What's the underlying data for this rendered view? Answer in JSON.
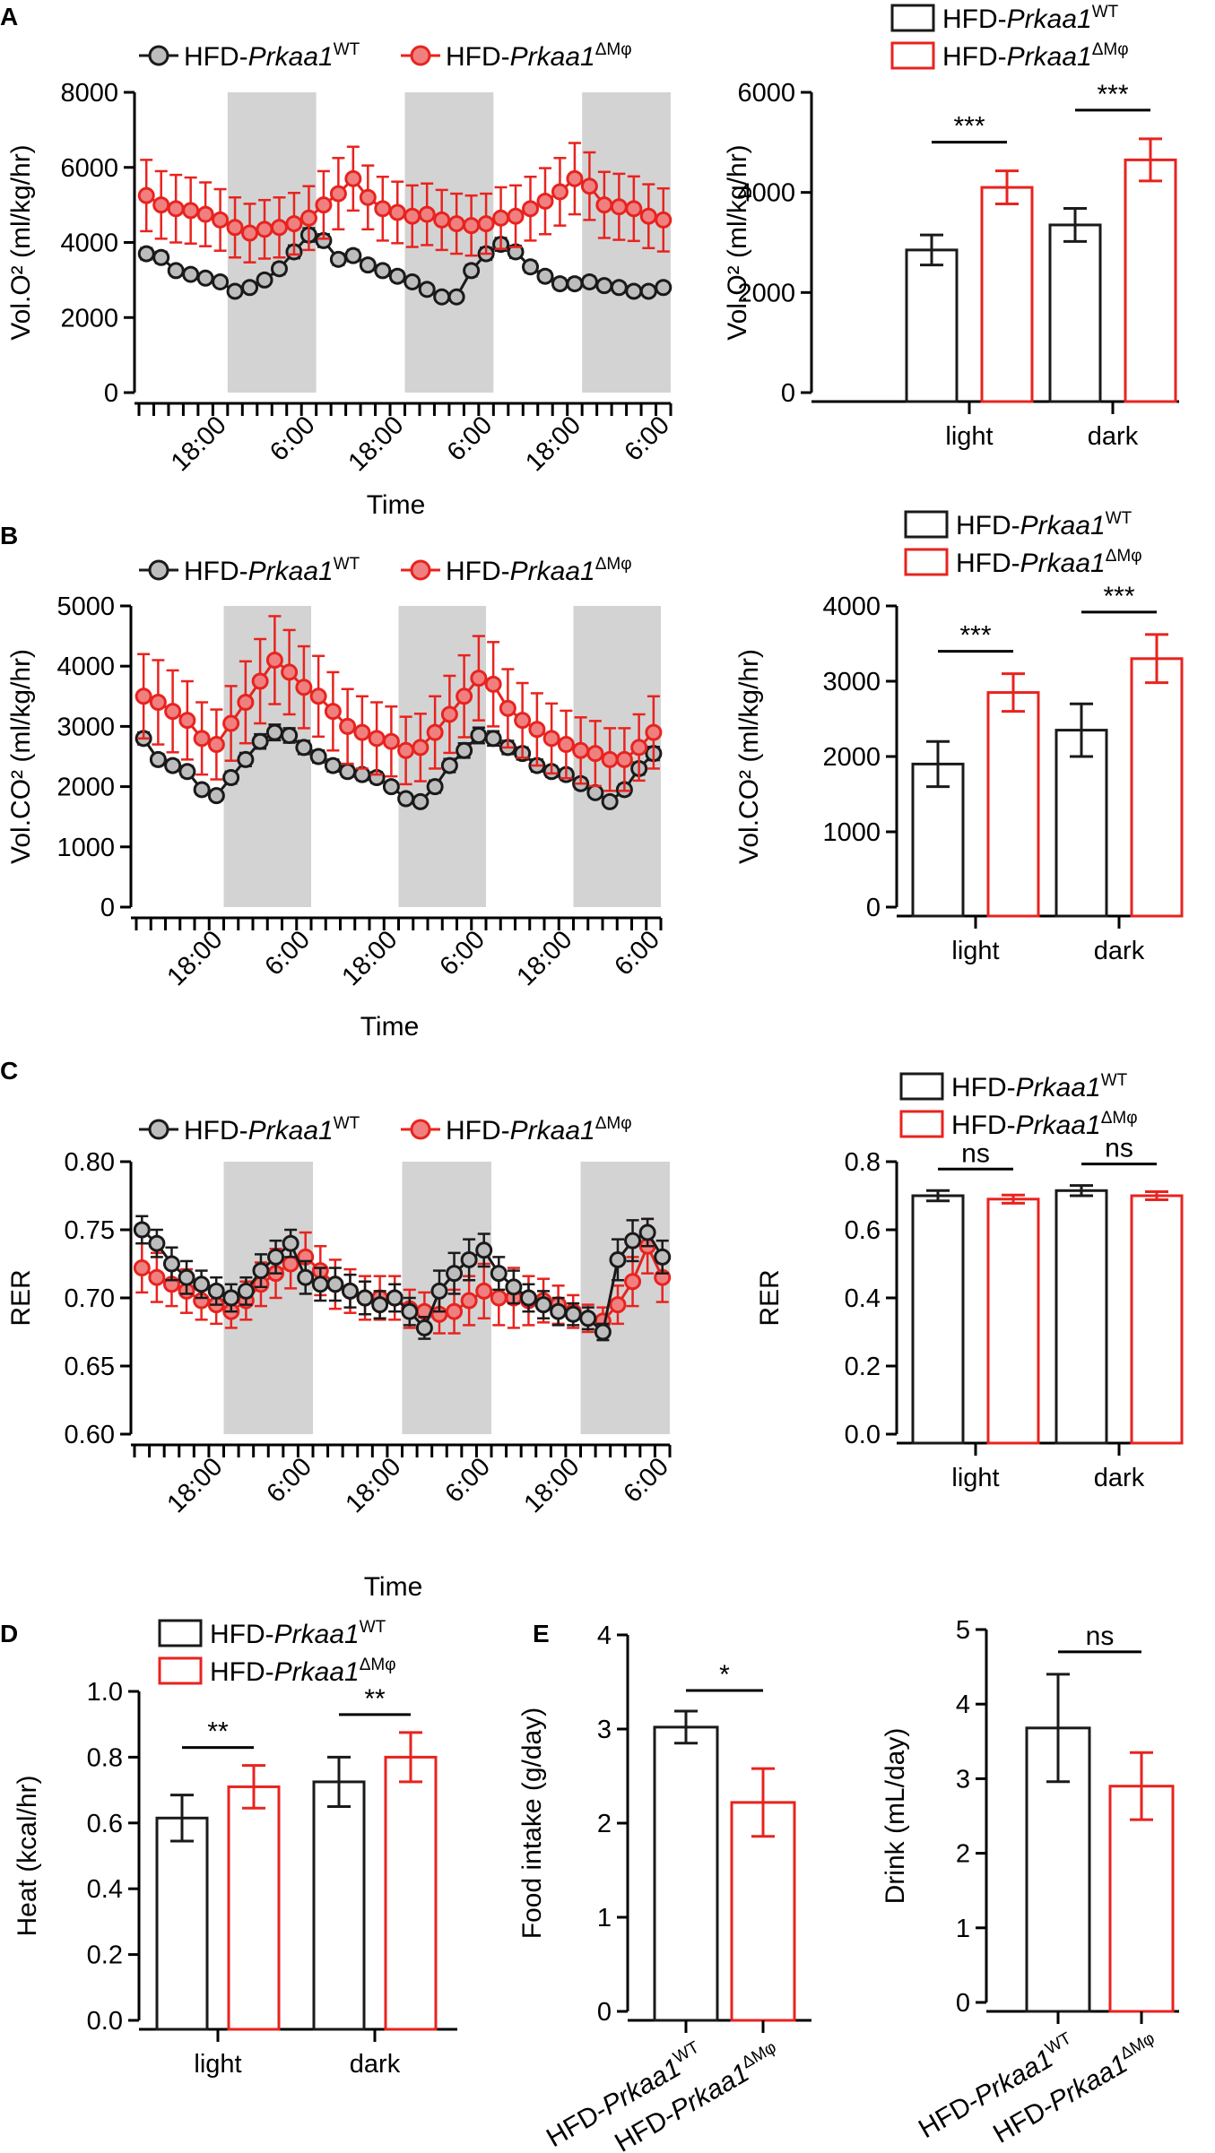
{
  "colors": {
    "wt": "#1a1a1a",
    "ko": "#e8231f",
    "night": "#d3d3d3",
    "marker_fill_wt": "#bdbdbd",
    "marker_fill_ko": "#f08080"
  },
  "legend": {
    "prefix": "HFD-",
    "gene": "Prkaa1",
    "wt_sup": "WT",
    "ko_sup": "ΔMφ"
  },
  "chart_data": [
    {
      "id": "A_time",
      "panel_label": "A",
      "type": "line",
      "ylabel": "Vol.O² (ml/kg/hr)",
      "xlabel": "Time",
      "ylim": [
        0,
        8000
      ],
      "yticks": [
        0,
        2000,
        4000,
        6000,
        8000
      ],
      "y_tick_labels": [
        "0",
        "2000",
        "4000",
        "6000",
        "8000"
      ],
      "x_tick_labels": [
        "18:00",
        "6:00",
        "18:00",
        "6:00",
        "18:00",
        "6:00"
      ],
      "x_count": 36,
      "night_bands": [
        [
          6,
          12
        ],
        [
          18,
          24
        ],
        [
          30,
          36
        ]
      ],
      "series": [
        {
          "name": "HFD-Prkaa1 WT",
          "key": "wt",
          "values": [
            3700,
            3600,
            3250,
            3150,
            3050,
            2950,
            2700,
            2800,
            3000,
            3300,
            3750,
            4200,
            4050,
            3550,
            3650,
            3400,
            3250,
            3100,
            2950,
            2750,
            2550,
            2550,
            3250,
            3700,
            3950,
            3750,
            3350,
            3100,
            2900,
            2900,
            2950,
            2850,
            2800,
            2700,
            2700,
            2800
          ],
          "errors": [
            150,
            150,
            130,
            130,
            120,
            120,
            120,
            120,
            120,
            150,
            170,
            180,
            170,
            150,
            150,
            140,
            140,
            140,
            130,
            130,
            120,
            120,
            150,
            160,
            170,
            160,
            150,
            140,
            140,
            140,
            140,
            130,
            130,
            130,
            120,
            120
          ]
        },
        {
          "name": "HFD-Prkaa1 ΔMφ",
          "key": "ko",
          "values": [
            5250,
            5000,
            4900,
            4850,
            4750,
            4600,
            4400,
            4250,
            4350,
            4400,
            4500,
            4650,
            5000,
            5300,
            5700,
            5200,
            4900,
            4800,
            4700,
            4750,
            4600,
            4500,
            4450,
            4500,
            4650,
            4700,
            4900,
            5100,
            5350,
            5700,
            5500,
            5000,
            4950,
            4900,
            4700,
            4600
          ],
          "errors": [
            950,
            900,
            900,
            880,
            850,
            820,
            800,
            780,
            780,
            800,
            820,
            850,
            900,
            950,
            850,
            850,
            850,
            820,
            820,
            820,
            800,
            800,
            800,
            800,
            820,
            820,
            850,
            880,
            900,
            950,
            900,
            880,
            880,
            860,
            850,
            840
          ]
        }
      ]
    },
    {
      "id": "A_bar",
      "type": "bar",
      "ylabel": "Vol.O² (ml/kg/hr)",
      "categories": [
        "light",
        "dark"
      ],
      "ylim": [
        0,
        6000
      ],
      "yticks": [
        0,
        2000,
        4000,
        6000
      ],
      "y_tick_labels": [
        "0",
        "2000",
        "4000",
        "6000"
      ],
      "series": [
        {
          "name": "HFD-Prkaa1 WT",
          "key": "wt",
          "values": [
            2850,
            3350
          ],
          "errors": [
            300,
            330
          ]
        },
        {
          "name": "HFD-Prkaa1 ΔMφ",
          "key": "ko",
          "values": [
            4100,
            4650
          ],
          "errors": [
            330,
            420
          ]
        }
      ],
      "significance": [
        "***",
        "***"
      ]
    },
    {
      "id": "B_time",
      "panel_label": "B",
      "type": "line",
      "ylabel": "Vol.CO² (ml/kg/hr)",
      "xlabel": "Time",
      "ylim": [
        0,
        5000
      ],
      "yticks": [
        0,
        1000,
        2000,
        3000,
        4000,
        5000
      ],
      "y_tick_labels": [
        "0",
        "1000",
        "2000",
        "3000",
        "4000",
        "5000"
      ],
      "x_tick_labels": [
        "18:00",
        "6:00",
        "18:00",
        "6:00",
        "18:00",
        "6:00"
      ],
      "x_count": 36,
      "night_bands": [
        [
          6,
          12
        ],
        [
          18,
          24
        ],
        [
          30,
          36
        ]
      ],
      "series": [
        {
          "name": "HFD-Prkaa1 WT",
          "key": "wt",
          "values": [
            2800,
            2450,
            2350,
            2250,
            1950,
            1850,
            2150,
            2450,
            2750,
            2900,
            2850,
            2650,
            2500,
            2350,
            2250,
            2200,
            2150,
            2000,
            1800,
            1750,
            2000,
            2350,
            2600,
            2850,
            2800,
            2650,
            2550,
            2350,
            2250,
            2200,
            2050,
            1900,
            1750,
            1950,
            2300,
            2550
          ],
          "errors": [
            100,
            90,
            90,
            90,
            80,
            80,
            100,
            110,
            120,
            130,
            120,
            110,
            100,
            100,
            90,
            90,
            90,
            80,
            80,
            80,
            100,
            110,
            120,
            130,
            120,
            110,
            100,
            100,
            90,
            90,
            90,
            80,
            80,
            90,
            100,
            110
          ]
        },
        {
          "name": "HFD-Prkaa1 ΔMφ",
          "key": "ko",
          "values": [
            3500,
            3400,
            3250,
            3100,
            2800,
            2700,
            3050,
            3400,
            3750,
            4100,
            3900,
            3650,
            3500,
            3250,
            3000,
            2900,
            2800,
            2750,
            2600,
            2650,
            2900,
            3200,
            3500,
            3800,
            3700,
            3300,
            3100,
            2950,
            2800,
            2700,
            2600,
            2550,
            2450,
            2450,
            2650,
            2900
          ],
          "errors": [
            700,
            700,
            680,
            650,
            600,
            580,
            620,
            680,
            700,
            730,
            700,
            680,
            670,
            650,
            620,
            600,
            600,
            580,
            560,
            560,
            600,
            640,
            680,
            700,
            700,
            650,
            620,
            600,
            580,
            560,
            550,
            540,
            520,
            520,
            550,
            600
          ]
        }
      ]
    },
    {
      "id": "B_bar",
      "type": "bar",
      "ylabel": "Vol.CO² (ml/kg/hr)",
      "categories": [
        "light",
        "dark"
      ],
      "ylim": [
        0,
        4000
      ],
      "yticks": [
        0,
        1000,
        2000,
        3000,
        4000
      ],
      "y_tick_labels": [
        "0",
        "1000",
        "2000",
        "3000",
        "4000"
      ],
      "series": [
        {
          "name": "HFD-Prkaa1 WT",
          "key": "wt",
          "values": [
            1900,
            2350
          ],
          "errors": [
            300,
            350
          ]
        },
        {
          "name": "HFD-Prkaa1 ΔMφ",
          "key": "ko",
          "values": [
            2850,
            3300
          ],
          "errors": [
            250,
            320
          ]
        }
      ],
      "significance": [
        "***",
        "***"
      ]
    },
    {
      "id": "C_time",
      "panel_label": "C",
      "type": "line",
      "ylabel": "RER",
      "xlabel": "Time",
      "ylim": [
        0.6,
        0.8
      ],
      "yticks": [
        0.6,
        0.65,
        0.7,
        0.75,
        0.8
      ],
      "y_tick_labels": [
        "0.60",
        "0.65",
        "0.70",
        "0.75",
        "0.80"
      ],
      "x_tick_labels": [
        "18:00",
        "6:00",
        "18:00",
        "6:00",
        "18:00",
        "6:00"
      ],
      "x_count": 36,
      "night_bands": [
        [
          6,
          12
        ],
        [
          18,
          24
        ],
        [
          30,
          36
        ]
      ],
      "series": [
        {
          "name": "HFD-Prkaa1 WT",
          "key": "wt",
          "values": [
            0.75,
            0.74,
            0.725,
            0.715,
            0.71,
            0.705,
            0.7,
            0.705,
            0.72,
            0.73,
            0.74,
            0.715,
            0.71,
            0.71,
            0.705,
            0.7,
            0.695,
            0.7,
            0.69,
            0.678,
            0.705,
            0.718,
            0.728,
            0.735,
            0.718,
            0.708,
            0.7,
            0.695,
            0.69,
            0.688,
            0.685,
            0.675,
            0.728,
            0.742,
            0.748,
            0.73
          ],
          "errors": [
            0.01,
            0.01,
            0.012,
            0.012,
            0.01,
            0.01,
            0.01,
            0.01,
            0.012,
            0.012,
            0.01,
            0.012,
            0.012,
            0.012,
            0.012,
            0.012,
            0.01,
            0.01,
            0.01,
            0.008,
            0.015,
            0.015,
            0.015,
            0.012,
            0.012,
            0.012,
            0.01,
            0.01,
            0.01,
            0.008,
            0.008,
            0.006,
            0.015,
            0.015,
            0.01,
            0.012
          ]
        },
        {
          "name": "HFD-Prkaa1 ΔMφ",
          "key": "ko",
          "values": [
            0.722,
            0.715,
            0.71,
            0.705,
            0.698,
            0.695,
            0.69,
            0.698,
            0.71,
            0.718,
            0.725,
            0.73,
            0.72,
            0.71,
            0.705,
            0.7,
            0.7,
            0.7,
            0.692,
            0.69,
            0.688,
            0.69,
            0.698,
            0.705,
            0.7,
            0.7,
            0.698,
            0.698,
            0.695,
            0.69,
            0.685,
            0.683,
            0.695,
            0.712,
            0.738,
            0.715
          ],
          "errors": [
            0.018,
            0.018,
            0.016,
            0.016,
            0.014,
            0.014,
            0.012,
            0.014,
            0.016,
            0.018,
            0.018,
            0.018,
            0.018,
            0.018,
            0.016,
            0.016,
            0.016,
            0.016,
            0.014,
            0.014,
            0.014,
            0.016,
            0.018,
            0.02,
            0.02,
            0.022,
            0.018,
            0.016,
            0.014,
            0.012,
            0.01,
            0.01,
            0.014,
            0.018,
            0.02,
            0.018
          ]
        }
      ]
    },
    {
      "id": "C_bar",
      "type": "bar",
      "ylabel": "RER",
      "categories": [
        "light",
        "dark"
      ],
      "ylim": [
        0,
        0.8
      ],
      "yticks": [
        0,
        0.2,
        0.4,
        0.6,
        0.8
      ],
      "y_tick_labels": [
        "0.0",
        "0.2",
        "0.4",
        "0.6",
        "0.8"
      ],
      "series": [
        {
          "name": "HFD-Prkaa1 WT",
          "key": "wt",
          "values": [
            0.7,
            0.715
          ],
          "errors": [
            0.015,
            0.015
          ]
        },
        {
          "name": "HFD-Prkaa1 ΔMφ",
          "key": "ko",
          "values": [
            0.69,
            0.7
          ],
          "errors": [
            0.012,
            0.012
          ]
        }
      ],
      "significance": [
        "ns",
        "ns"
      ]
    },
    {
      "id": "D_bar",
      "panel_label": "D",
      "type": "bar",
      "ylabel": "Heat (kcal/hr)",
      "categories": [
        "light",
        "dark"
      ],
      "ylim": [
        0,
        1.0
      ],
      "yticks": [
        0,
        0.2,
        0.4,
        0.6,
        0.8,
        1.0
      ],
      "y_tick_labels": [
        "0.0",
        "0.2",
        "0.4",
        "0.6",
        "0.8",
        "1.0"
      ],
      "series": [
        {
          "name": "HFD-Prkaa1 WT",
          "key": "wt",
          "values": [
            0.615,
            0.725
          ],
          "errors": [
            0.07,
            0.075
          ]
        },
        {
          "name": "HFD-Prkaa1 ΔMφ",
          "key": "ko",
          "values": [
            0.71,
            0.8
          ],
          "errors": [
            0.065,
            0.075
          ]
        }
      ],
      "significance": [
        "**",
        "**"
      ]
    },
    {
      "id": "E_food",
      "panel_label": "E",
      "type": "bar",
      "ylabel": "Food intake (g/day)",
      "ylim": [
        0,
        4
      ],
      "yticks": [
        0,
        1,
        2,
        3,
        4
      ],
      "y_tick_labels": [
        "0",
        "1",
        "2",
        "3",
        "4"
      ],
      "series": [
        {
          "name": "HFD-Prkaa1 WT",
          "key": "wt",
          "values": [
            3.02
          ],
          "errors": [
            0.17
          ]
        },
        {
          "name": "HFD-Prkaa1 ΔMφ",
          "key": "ko",
          "values": [
            2.22
          ],
          "errors": [
            0.36
          ]
        }
      ],
      "significance": [
        "*"
      ]
    },
    {
      "id": "E_drink",
      "type": "bar",
      "ylabel": "Drink (mL/day)",
      "ylim": [
        0,
        5
      ],
      "yticks": [
        0,
        1,
        2,
        3,
        4,
        5
      ],
      "y_tick_labels": [
        "0",
        "1",
        "2",
        "3",
        "4",
        "5"
      ],
      "series": [
        {
          "name": "HFD-Prkaa1 WT",
          "key": "wt",
          "values": [
            3.68
          ],
          "errors": [
            0.72
          ]
        },
        {
          "name": "HFD-Prkaa1 ΔMφ",
          "key": "ko",
          "values": [
            2.9
          ],
          "errors": [
            0.45
          ]
        }
      ],
      "significance": [
        "ns"
      ]
    }
  ]
}
